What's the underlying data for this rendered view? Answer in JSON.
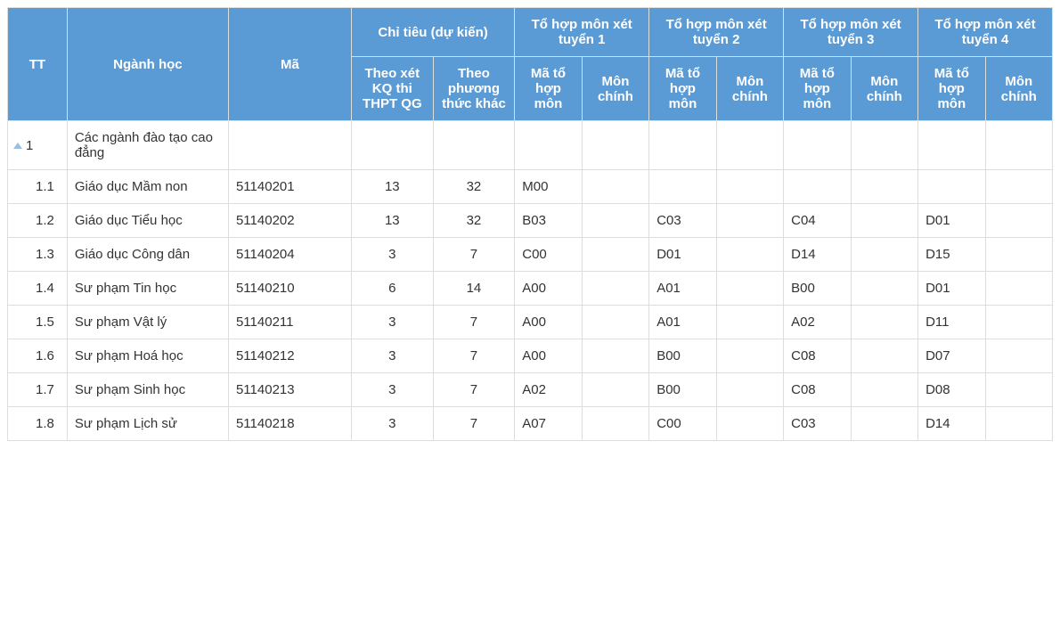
{
  "headers": {
    "tt": "TT",
    "nganh": "Ngành học",
    "ma": "Mã",
    "chitieu_group": "Chỉ tiêu (dự kiến)",
    "tohop1": "Tổ hợp môn xét tuyển 1",
    "tohop2": "Tổ hợp môn xét tuyển 2",
    "tohop3": "Tổ hợp môn xét tuyển 3",
    "tohop4": "Tổ hợp môn xét tuyển 4",
    "theo_kq": "Theo xét KQ thi THPT QG",
    "theo_pt": "Theo phương thức khác",
    "matohop": "Mã tổ hợp môn",
    "monchinh": "Môn chính"
  },
  "rows": [
    {
      "tt": "1",
      "name": "Các ngành đào tạo cao đẳng",
      "code": "",
      "q1": "",
      "q2": "",
      "m1": "",
      "mc1": "",
      "m2": "",
      "mc2": "",
      "m3": "",
      "mc3": "",
      "m4": "",
      "mc4": "",
      "group": true
    },
    {
      "tt": "1.1",
      "name": "Giáo dục Mầm non",
      "code": "51140201",
      "q1": "13",
      "q2": "32",
      "m1": "M00",
      "mc1": "",
      "m2": "",
      "mc2": "",
      "m3": "",
      "mc3": "",
      "m4": "",
      "mc4": ""
    },
    {
      "tt": "1.2",
      "name": "Giáo dục Tiểu học",
      "code": "51140202",
      "q1": "13",
      "q2": "32",
      "m1": "B03",
      "mc1": "",
      "m2": "C03",
      "mc2": "",
      "m3": "C04",
      "mc3": "",
      "m4": "D01",
      "mc4": ""
    },
    {
      "tt": "1.3",
      "name": "Giáo dục Công dân",
      "code": "51140204",
      "q1": "3",
      "q2": "7",
      "m1": "C00",
      "mc1": "",
      "m2": "D01",
      "mc2": "",
      "m3": "D14",
      "mc3": "",
      "m4": "D15",
      "mc4": ""
    },
    {
      "tt": "1.4",
      "name": "Sư phạm Tin học",
      "code": "51140210",
      "q1": "6",
      "q2": "14",
      "m1": "A00",
      "mc1": "",
      "m2": "A01",
      "mc2": "",
      "m3": "B00",
      "mc3": "",
      "m4": "D01",
      "mc4": ""
    },
    {
      "tt": "1.5",
      "name": "Sư phạm Vật lý",
      "code": "51140211",
      "q1": "3",
      "q2": "7",
      "m1": "A00",
      "mc1": "",
      "m2": "A01",
      "mc2": "",
      "m3": "A02",
      "mc3": "",
      "m4": "D11",
      "mc4": ""
    },
    {
      "tt": "1.6",
      "name": "Sư phạm Hoá học",
      "code": "51140212",
      "q1": "3",
      "q2": "7",
      "m1": "A00",
      "mc1": "",
      "m2": "B00",
      "mc2": "",
      "m3": "C08",
      "mc3": "",
      "m4": "D07",
      "mc4": ""
    },
    {
      "tt": "1.7",
      "name": "Sư phạm Sinh học",
      "code": "51140213",
      "q1": "3",
      "q2": "7",
      "m1": "A02",
      "mc1": "",
      "m2": "B00",
      "mc2": "",
      "m3": "C08",
      "mc3": "",
      "m4": "D08",
      "mc4": ""
    },
    {
      "tt": "1.8",
      "name": "Sư phạm Lịch sử",
      "code": "51140218",
      "q1": "3",
      "q2": "7",
      "m1": "A07",
      "mc1": "",
      "m2": "C00",
      "mc2": "",
      "m3": "C03",
      "mc3": "",
      "m4": "D14",
      "mc4": ""
    }
  ],
  "style": {
    "header_bg": "#5b9bd5",
    "header_fg": "#ffffff",
    "border_color": "#dddddd",
    "row_bg": "#ffffff",
    "text_color": "#333333",
    "font_size_pt": 11
  }
}
